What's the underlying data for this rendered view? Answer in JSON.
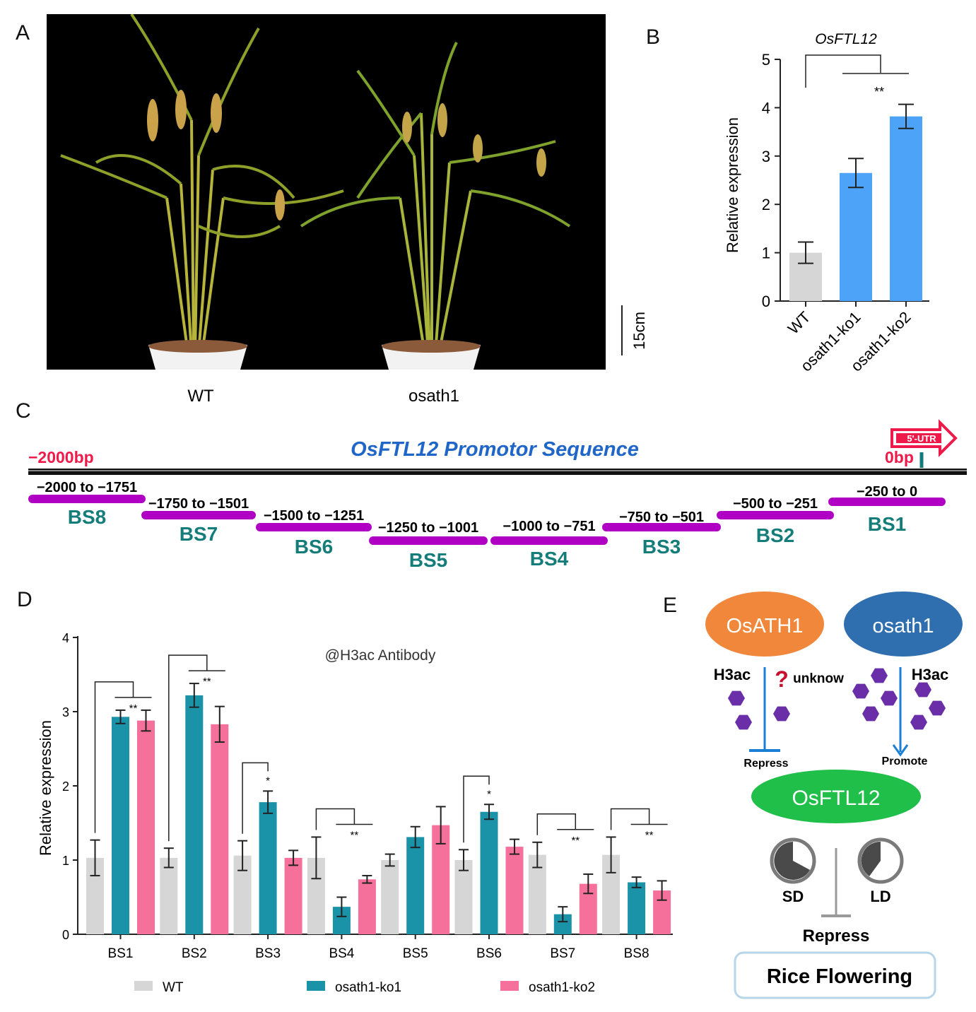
{
  "panels": {
    "a": "A",
    "b": "B",
    "c": "C",
    "d": "D",
    "e": "E"
  },
  "panel_a": {
    "scale_label": "15cm",
    "plant_labels": [
      "WT",
      "osath1"
    ]
  },
  "panel_c": {
    "title": "OsFTL12 Promotor Sequence",
    "start_label": "−2000bp",
    "end_label": "0bp",
    "utr_label": "5'-UTR",
    "sites": [
      {
        "name": "BS8",
        "range": "−2000 to −1751"
      },
      {
        "name": "BS7",
        "range": "−1750 to −1501"
      },
      {
        "name": "BS6",
        "range": "−1500 to −1251"
      },
      {
        "name": "BS5",
        "range": "−1250 to −1001"
      },
      {
        "name": "BS4",
        "range": "−1000 to −751"
      },
      {
        "name": "BS3",
        "range": "−750 to −501"
      },
      {
        "name": "BS2",
        "range": "−500 to −251"
      },
      {
        "name": "BS1",
        "range": "−250 to 0"
      }
    ]
  },
  "panel_e": {
    "oval_wt": "OsATH1",
    "oval_mut": "osath1",
    "h3ac_left": "H3ac",
    "question": "?",
    "unknow": "unknow",
    "h3ac_right": "H3ac",
    "repress_top": "Repress",
    "promote": "Promote",
    "ftl_oval": "OsFTL12",
    "sd": "SD",
    "ld": "LD",
    "repress_bottom": "Repress",
    "flowering": "Rice Flowering"
  },
  "colors": {
    "wt": "#d6d6d6",
    "ko1_b": "#4da3f7",
    "ko1_d": "#1a93a8",
    "ko2_d": "#f5709a",
    "magenta": "#b000c4",
    "teal": "#147d7a",
    "red": "#ee1b4a",
    "blue_text": "#1f66c8",
    "orange": "#f0873a",
    "darkblue": "#2f6fb0",
    "green": "#1fbf4a",
    "purple": "#6a2fa8"
  },
  "chart_data": [
    {
      "type": "bar",
      "title": "OsFTL12",
      "ylabel": "Relative expression",
      "categories": [
        "WT",
        "osath1-ko1",
        "osath1-ko2"
      ],
      "values": [
        1.0,
        2.65,
        3.82
      ],
      "errors": [
        0.22,
        0.3,
        0.25
      ],
      "ylim": [
        0,
        5
      ],
      "yticks": [
        0,
        1,
        2,
        3,
        4,
        5
      ],
      "significance": "**"
    },
    {
      "type": "bar",
      "annotation": "@H3ac Antibody",
      "ylabel": "Relative expression",
      "categories": [
        "BS1",
        "BS2",
        "BS3",
        "BS4",
        "BS5",
        "BS6",
        "BS7",
        "BS8"
      ],
      "series": [
        {
          "name": "WT",
          "values": [
            1.03,
            1.03,
            1.06,
            1.03,
            1.0,
            1.0,
            1.07,
            1.07
          ],
          "errors": [
            0.24,
            0.13,
            0.2,
            0.28,
            0.08,
            0.14,
            0.17,
            0.24
          ]
        },
        {
          "name": "osath1-ko1",
          "values": [
            2.93,
            3.22,
            1.78,
            0.37,
            1.31,
            1.65,
            0.27,
            0.7
          ],
          "errors": [
            0.09,
            0.16,
            0.15,
            0.13,
            0.14,
            0.1,
            0.1,
            0.07
          ]
        },
        {
          "name": "osath1-ko2",
          "values": [
            2.88,
            2.83,
            1.03,
            0.74,
            1.47,
            1.18,
            0.68,
            0.59
          ],
          "errors": [
            0.14,
            0.24,
            0.1,
            0.05,
            0.25,
            0.1,
            0.13,
            0.13
          ]
        }
      ],
      "significance": [
        "**",
        "**",
        "*",
        "**",
        "",
        "*",
        "**",
        "**"
      ],
      "ylim": [
        0,
        4
      ],
      "yticks": [
        0,
        1,
        2,
        3,
        4
      ]
    }
  ]
}
